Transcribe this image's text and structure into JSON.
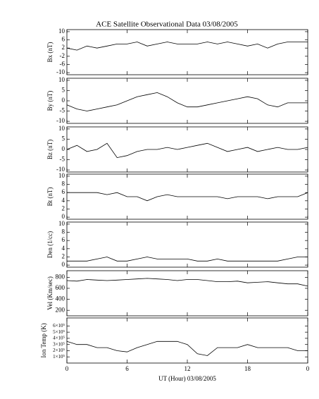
{
  "title": "ACE Satellite Observational Data  03/08/2005",
  "x_axis": {
    "label": "UT (Hour)  03/08/2005",
    "xlim": [
      0,
      24
    ],
    "xticks": [
      0,
      6,
      12,
      18,
      {
        "value": 24,
        "label": "0"
      }
    ]
  },
  "x": [
    0,
    1,
    2,
    3,
    4,
    5,
    6,
    7,
    8,
    9,
    10,
    11,
    12,
    13,
    14,
    15,
    16,
    17,
    18,
    19,
    20,
    21,
    22,
    23,
    24
  ],
  "chart_data": [
    {
      "type": "line",
      "ylabel": "Bx (nT)",
      "ylim": [
        -11,
        11
      ],
      "yticks": [
        -10,
        -6,
        -2,
        2,
        6,
        10
      ],
      "color": "#000000",
      "values": [
        2,
        1,
        3,
        2,
        3,
        4,
        4,
        5,
        3,
        4,
        5,
        4,
        4,
        4,
        5,
        4,
        5,
        4,
        3,
        4,
        2,
        4,
        5,
        5,
        5
      ]
    },
    {
      "type": "line",
      "ylabel": "By (nT)",
      "ylim": [
        -11,
        11
      ],
      "yticks": [
        -10,
        -5,
        0,
        5,
        10
      ],
      "color": "#000000",
      "values": [
        -2,
        -4,
        -5,
        -4,
        -3,
        -2,
        0,
        2,
        3,
        4,
        2,
        -1,
        -3,
        -3,
        -2,
        -1,
        0,
        1,
        2,
        1,
        -2,
        -3,
        -1,
        -1,
        -1
      ]
    },
    {
      "type": "line",
      "ylabel": "Bz (nT)",
      "ylim": [
        -11,
        11
      ],
      "yticks": [
        -10,
        -5,
        0,
        5,
        10
      ],
      "color": "#000000",
      "values": [
        0,
        2,
        -1,
        0,
        3,
        -4,
        -3,
        -1,
        0,
        0,
        1,
        0,
        1,
        2,
        3,
        1,
        -1,
        0,
        1,
        -1,
        0,
        1,
        0,
        0,
        1
      ]
    },
    {
      "type": "line",
      "ylabel": "Bt (nT)",
      "ylim": [
        -0.5,
        10.5
      ],
      "yticks": [
        0,
        2,
        4,
        6,
        8,
        10
      ],
      "color": "#000000",
      "values": [
        6,
        6,
        6,
        6,
        5.5,
        6,
        5,
        5,
        4,
        5,
        5.5,
        5,
        5,
        5,
        5,
        5,
        4.5,
        5,
        5,
        5,
        4.5,
        5,
        5,
        5,
        6
      ]
    },
    {
      "type": "line",
      "ylabel": "Den (1/cc)",
      "ylim": [
        -0.5,
        10.5
      ],
      "yticks": [
        0,
        2,
        4,
        6,
        8,
        10
      ],
      "color": "#000000",
      "values": [
        1,
        1,
        1,
        1.5,
        2,
        1,
        1,
        1.5,
        2,
        1.5,
        1.5,
        1.5,
        1.5,
        1,
        1,
        1.5,
        1,
        1,
        1,
        1,
        1,
        1,
        1.5,
        2,
        2
      ]
    },
    {
      "type": "line",
      "ylabel": "Vel (Km/sec)",
      "ylim": [
        100,
        920
      ],
      "yticks": [
        200,
        400,
        600,
        800
      ],
      "color": "#000000",
      "values": [
        740,
        730,
        760,
        750,
        740,
        750,
        760,
        770,
        780,
        770,
        760,
        740,
        760,
        760,
        740,
        720,
        720,
        730,
        700,
        710,
        720,
        700,
        680,
        680,
        640
      ]
    },
    {
      "type": "line",
      "ylabel": "Ion Temp (K)",
      "ylim": [
        0,
        730000
      ],
      "yticks": [
        {
          "value": 100000,
          "label": "1×10⁵"
        },
        {
          "value": 200000,
          "label": "2×10⁵"
        },
        {
          "value": 300000,
          "label": "3×10⁵"
        },
        {
          "value": 400000,
          "label": "4×10⁵"
        },
        {
          "value": 500000,
          "label": "5×10⁵"
        },
        {
          "value": 600000,
          "label": "6×10⁵"
        }
      ],
      "color": "#000000",
      "values": [
        350000,
        300000,
        300000,
        250000,
        250000,
        200000,
        180000,
        250000,
        300000,
        350000,
        350000,
        350000,
        300000,
        150000,
        120000,
        250000,
        250000,
        250000,
        300000,
        250000,
        250000,
        250000,
        250000,
        200000,
        200000
      ]
    }
  ]
}
